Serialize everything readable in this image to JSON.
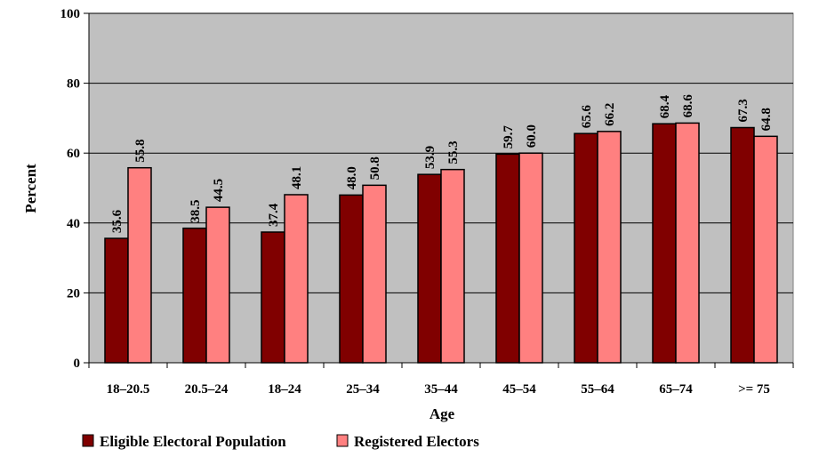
{
  "chart_data": {
    "type": "bar",
    "xlabel": "Age",
    "ylabel": "Percent",
    "ylim": [
      0,
      100
    ],
    "yticks": [
      0,
      20,
      40,
      60,
      80,
      100
    ],
    "grid": true,
    "legend_position": "bottom-left",
    "plot_background": "#c0c0c0",
    "categories": [
      "18–20.5",
      "20.5–24",
      "18–24",
      "25–34",
      "35–44",
      "45–54",
      "55–64",
      "65–74",
      ">= 75"
    ],
    "series": [
      {
        "name": "Eligible Electoral Population",
        "color": "#800000",
        "values": [
          35.6,
          38.5,
          37.4,
          48.0,
          53.9,
          59.7,
          65.6,
          68.4,
          67.3
        ],
        "labels": [
          "35.6",
          "38.5",
          "37.4",
          "48.0",
          "53.9",
          "59.7",
          "65.6",
          "68.4",
          "67.3"
        ]
      },
      {
        "name": "Registered Electors",
        "color": "#ff8080",
        "values": [
          55.8,
          44.5,
          48.1,
          50.8,
          55.3,
          60.0,
          66.2,
          68.6,
          64.8
        ],
        "labels": [
          "55.8",
          "44.5",
          "48.1",
          "50.8",
          "55.3",
          "60.0",
          "66.2",
          "68.6",
          "64.8"
        ]
      }
    ]
  }
}
